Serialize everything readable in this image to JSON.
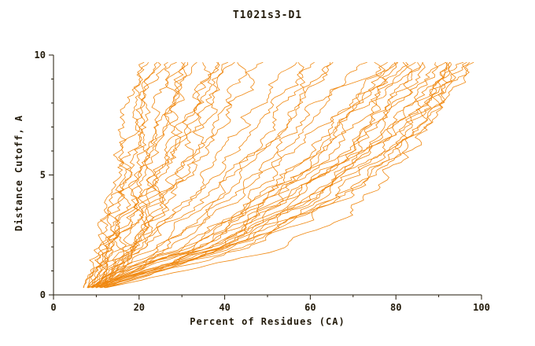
{
  "chart_data": {
    "type": "line",
    "title": "T1021s3-D1",
    "xlabel": "Percent of Residues (CA)",
    "ylabel": "Distance Cutoff, A",
    "xlim": [
      0,
      100
    ],
    "ylim": [
      0,
      10
    ],
    "xticks": [
      0,
      20,
      40,
      60,
      80,
      100
    ],
    "yticks": [
      0,
      5,
      10
    ],
    "x_minor": 10,
    "y_minor": 1,
    "line_color": "#f08810",
    "axis_color": "#221a0a",
    "grid": false,
    "legend": "none",
    "control_y": [
      0.3,
      2,
      4,
      6,
      8,
      9.7
    ],
    "series": [
      [
        8,
        11,
        13,
        15,
        17,
        20
      ],
      [
        9,
        12,
        14,
        16,
        19,
        22
      ],
      [
        7,
        12,
        15,
        18,
        20,
        23
      ],
      [
        10,
        13,
        16,
        19,
        22,
        25
      ],
      [
        8,
        13,
        17,
        20,
        23,
        26
      ],
      [
        9,
        14,
        18,
        22,
        25,
        27
      ],
      [
        11,
        15,
        19,
        23,
        26,
        28
      ],
      [
        7,
        13,
        18,
        23,
        27,
        30
      ],
      [
        10,
        16,
        20,
        24,
        28,
        31
      ],
      [
        8,
        15,
        21,
        26,
        30,
        33
      ],
      [
        12,
        18,
        23,
        28,
        32,
        35
      ],
      [
        9,
        16,
        22,
        28,
        33,
        36
      ],
      [
        10,
        17,
        24,
        30,
        34,
        38
      ],
      [
        11,
        19,
        26,
        32,
        36,
        40
      ],
      [
        8,
        16,
        24,
        31,
        37,
        42
      ],
      [
        12,
        20,
        27,
        34,
        40,
        45
      ],
      [
        9,
        18,
        27,
        35,
        42,
        48
      ],
      [
        9,
        20,
        30,
        40,
        48,
        55
      ],
      [
        10,
        22,
        33,
        43,
        52,
        58
      ],
      [
        8,
        21,
        34,
        45,
        54,
        61
      ],
      [
        11,
        24,
        37,
        48,
        57,
        64
      ],
      [
        9,
        23,
        38,
        50,
        60,
        67
      ],
      [
        10,
        26,
        40,
        52,
        62,
        72
      ],
      [
        8,
        28,
        43,
        55,
        65,
        75
      ],
      [
        11,
        30,
        46,
        58,
        68,
        77
      ],
      [
        9,
        32,
        48,
        60,
        70,
        79
      ],
      [
        12,
        34,
        50,
        62,
        72,
        80
      ],
      [
        10,
        30,
        48,
        62,
        73,
        82
      ],
      [
        8,
        33,
        51,
        64,
        74,
        83
      ],
      [
        11,
        36,
        53,
        66,
        76,
        84
      ],
      [
        9,
        34,
        52,
        67,
        78,
        85
      ],
      [
        12,
        38,
        55,
        69,
        79,
        86
      ],
      [
        10,
        36,
        56,
        70,
        80,
        87
      ],
      [
        8,
        32,
        54,
        70,
        81,
        88
      ],
      [
        11,
        40,
        58,
        72,
        82,
        89
      ],
      [
        9,
        38,
        58,
        73,
        83,
        90
      ],
      [
        12,
        42,
        60,
        74,
        84,
        91
      ],
      [
        10,
        40,
        61,
        75,
        85,
        92
      ],
      [
        8,
        36,
        60,
        76,
        86,
        93
      ],
      [
        11,
        44,
        63,
        77,
        87,
        94
      ],
      [
        9,
        42,
        64,
        78,
        88,
        95
      ],
      [
        12,
        46,
        66,
        80,
        89,
        96
      ],
      [
        10,
        44,
        67,
        81,
        90,
        97
      ],
      [
        8,
        40,
        66,
        82,
        91,
        98
      ],
      [
        12,
        55,
        72,
        82,
        90,
        96
      ]
    ]
  }
}
